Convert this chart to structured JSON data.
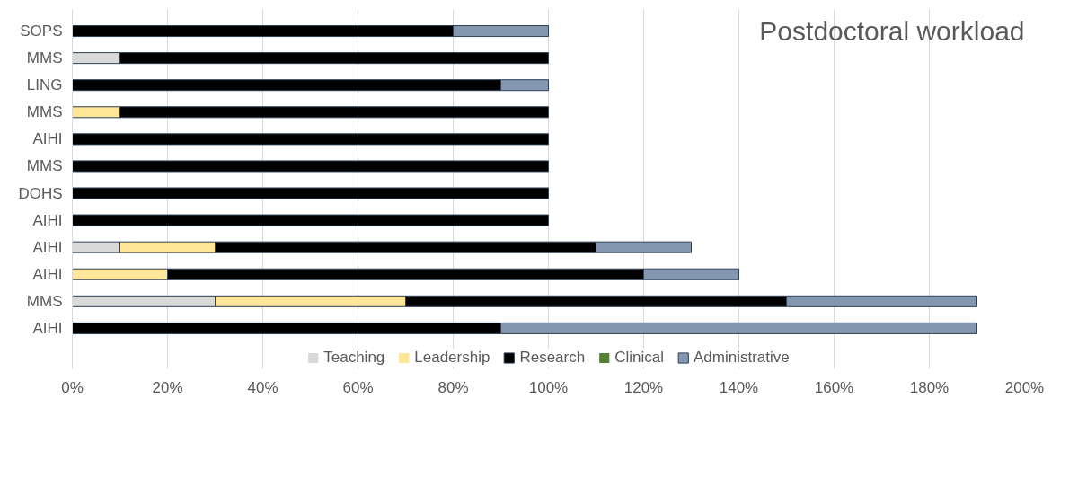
{
  "chart_data": {
    "type": "bar",
    "orientation": "horizontal",
    "stacked": true,
    "title": "Postdoctoral workload",
    "categories": [
      "SOPS",
      "MMS",
      "LING",
      "MMS",
      "AIHI",
      "MMS",
      "DOHS",
      "AIHI",
      "AIHI",
      "AIHI",
      "MMS",
      "AIHI"
    ],
    "series": [
      {
        "name": "Teaching",
        "color": "#d9d9d9",
        "values": [
          0,
          10,
          0,
          0,
          0,
          0,
          0,
          0,
          10,
          0,
          30,
          0
        ]
      },
      {
        "name": "Leadership",
        "color": "#ffe699",
        "values": [
          0,
          0,
          0,
          10,
          0,
          0,
          0,
          0,
          20,
          20,
          40,
          0
        ]
      },
      {
        "name": "Research",
        "color": "#000000",
        "values": [
          80,
          90,
          90,
          90,
          100,
          100,
          100,
          100,
          80,
          100,
          80,
          90
        ]
      },
      {
        "name": "Clinical",
        "color": "#548235",
        "values": [
          0,
          0,
          0,
          0,
          0,
          0,
          0,
          0,
          0,
          0,
          0,
          0
        ]
      },
      {
        "name": "Administrative",
        "color": "#8497b0",
        "values": [
          20,
          0,
          10,
          0,
          0,
          0,
          0,
          0,
          20,
          20,
          40,
          100
        ]
      }
    ],
    "xlim": [
      0,
      200
    ],
    "xticks": [
      {
        "value": 0,
        "label": "0%"
      },
      {
        "value": 20,
        "label": "20%"
      },
      {
        "value": 40,
        "label": "40%"
      },
      {
        "value": 60,
        "label": "60%"
      },
      {
        "value": 80,
        "label": "80%"
      },
      {
        "value": 100,
        "label": "100%"
      },
      {
        "value": 120,
        "label": "120%"
      },
      {
        "value": 140,
        "label": "140%"
      },
      {
        "value": 160,
        "label": "160%"
      },
      {
        "value": 180,
        "label": "180%"
      },
      {
        "value": 200,
        "label": "200%"
      }
    ],
    "grid": "x",
    "legend": "bottom"
  }
}
